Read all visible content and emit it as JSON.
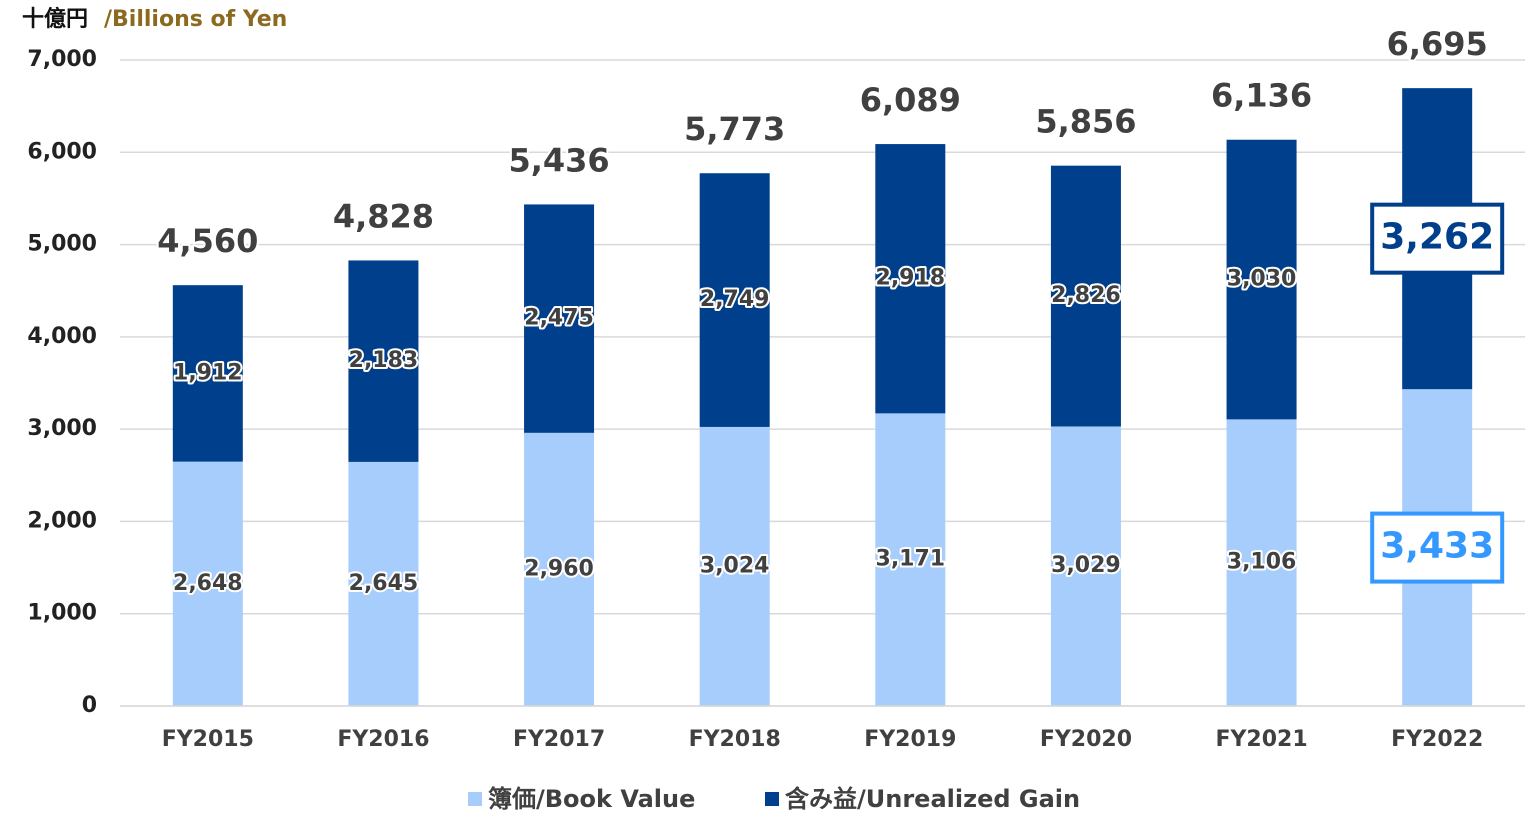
{
  "chart_data": {
    "type": "stacked_bar",
    "unit_label": {
      "ja": "十億円",
      "en": "/Billions of Yen"
    },
    "categories": [
      "FY2015",
      "FY2016",
      "FY2017",
      "FY2018",
      "FY2019",
      "FY2020",
      "FY2021",
      "FY2022"
    ],
    "series": [
      {
        "name": "簿価/Book Value",
        "color": "#a6cdfb",
        "values": [
          2648,
          2645,
          2960,
          3024,
          3171,
          3029,
          3106,
          3433
        ],
        "value_labels": [
          "2,648",
          "2,645",
          "2,960",
          "3,024",
          "3,171",
          "3,029",
          "3,106",
          "3,433"
        ]
      },
      {
        "name": "含み益/Unrealized Gain",
        "color": "#003f8c",
        "values": [
          1912,
          2183,
          2475,
          2749,
          2918,
          2826,
          3030,
          3262
        ],
        "value_labels": [
          "1,912",
          "2,183",
          "2,475",
          "2,749",
          "2,918",
          "2,826",
          "3,030",
          "3,262"
        ]
      }
    ],
    "totals": {
      "values": [
        4560,
        4828,
        5436,
        5773,
        6089,
        5856,
        6136,
        6695
      ],
      "value_labels": [
        "4,560",
        "4,828",
        "5,436",
        "5,773",
        "6,089",
        "5,856",
        "6,136",
        "6,695"
      ]
    },
    "highlight": "FY2022",
    "ylim": [
      0,
      7000
    ],
    "yticks": [
      0,
      {
        "value": 1000,
        "label": "1,000"
      },
      {
        "value": 2000,
        "label": "2,000"
      },
      {
        "value": 3000,
        "label": "3,000"
      },
      {
        "value": 4000,
        "label": "4,000"
      },
      {
        "value": 5000,
        "label": "5,000"
      },
      {
        "value": 6000,
        "label": "6,000"
      },
      {
        "value": 7000,
        "label": "7,000"
      }
    ],
    "grid": true
  }
}
